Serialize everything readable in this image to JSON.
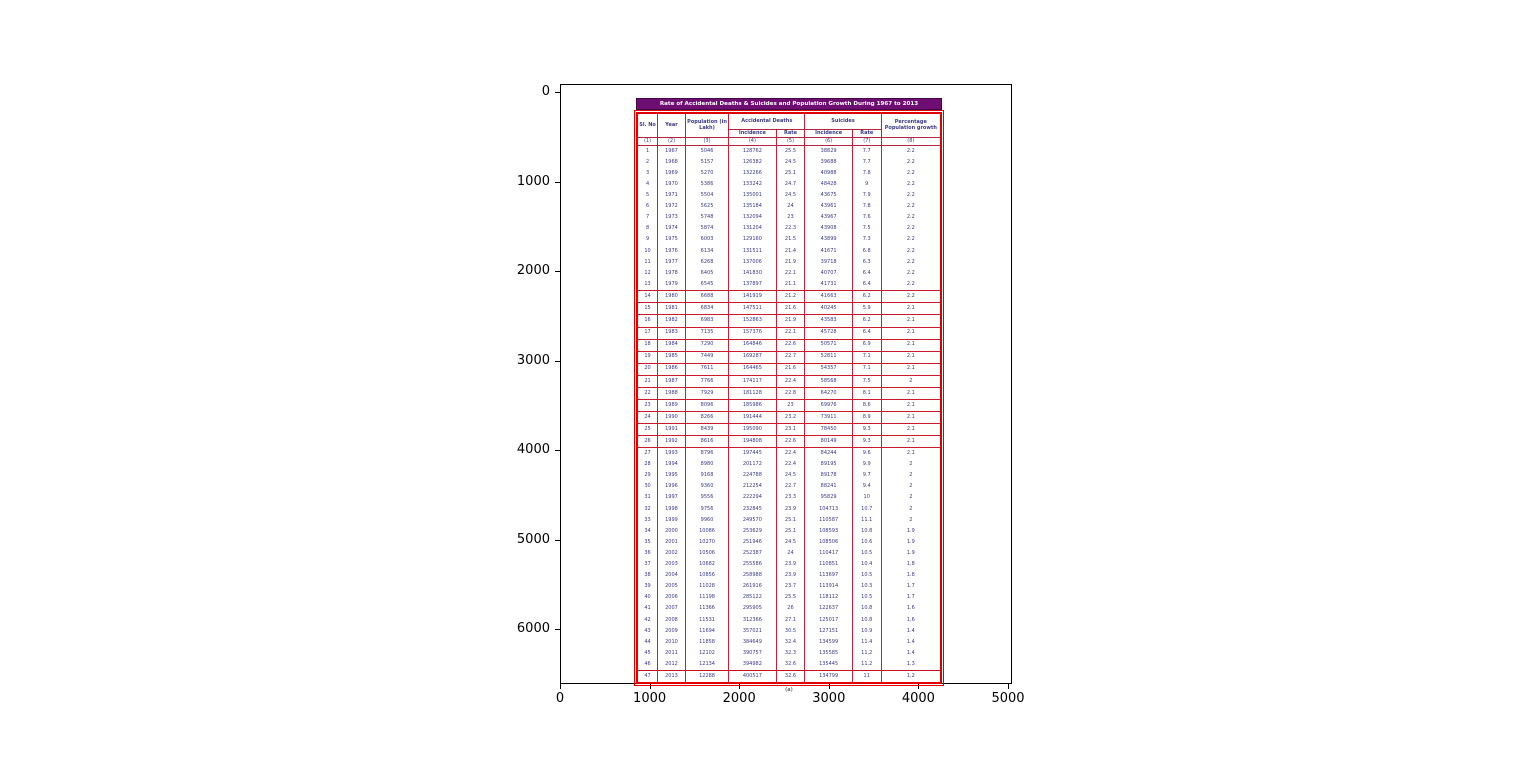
{
  "figure": {
    "x_ticks": [
      "0",
      "1000",
      "2000",
      "3000",
      "4000",
      "5000"
    ],
    "y_ticks": [
      "0",
      "1000",
      "2000",
      "3000",
      "4000",
      "5000",
      "6000"
    ]
  },
  "table": {
    "title": "Rate of Accidental Deaths & Suicides and Population Growth During 1967 to 2013",
    "caption": "(a)",
    "header": {
      "sl_no": "Sl. No",
      "year": "Year",
      "population": "Population (in Lakh)",
      "accidental": "Accidental Deaths",
      "suicides": "Suicides",
      "incidence": "Incidence",
      "rate": "Rate",
      "incidence2": "Incidence",
      "rate2": "Rate",
      "pct": "Percentage Population growth"
    },
    "column_numbers": [
      "(1)",
      "(2)",
      "(3)",
      "(4)",
      "(5)",
      "(6)",
      "(7)",
      "(8)"
    ]
  },
  "chart_data": {
    "type": "table",
    "title": "Rate of Accidental Deaths & Suicides and Population Growth During 1967 to 2013",
    "caption": "(a)",
    "columns": [
      "Sl. No",
      "Year",
      "Population (in Lakh)",
      "Accidental Deaths Incidence",
      "Accidental Deaths Rate",
      "Suicides Incidence",
      "Suicides Rate",
      "Percentage Population growth"
    ],
    "rows": [
      [
        1,
        1967,
        5046,
        128762,
        25.5,
        38829,
        7.7,
        2.2
      ],
      [
        2,
        1968,
        5157,
        126382,
        24.5,
        39688,
        7.7,
        2.2
      ],
      [
        3,
        1969,
        5270,
        132266,
        25.1,
        40988,
        7.8,
        2.2
      ],
      [
        4,
        1970,
        5386,
        133242,
        24.7,
        48428,
        9.0,
        2.2
      ],
      [
        5,
        1971,
        5504,
        135001,
        24.5,
        43675,
        7.9,
        2.2
      ],
      [
        6,
        1972,
        5625,
        135184,
        24.0,
        43961,
        7.8,
        2.2
      ],
      [
        7,
        1973,
        5748,
        132094,
        23.0,
        43967,
        7.6,
        2.2
      ],
      [
        8,
        1974,
        5874,
        131204,
        22.3,
        43908,
        7.5,
        2.2
      ],
      [
        9,
        1975,
        6003,
        129160,
        21.5,
        43899,
        7.3,
        2.2
      ],
      [
        10,
        1976,
        6134,
        131511,
        21.4,
        41671,
        6.8,
        2.2
      ],
      [
        11,
        1977,
        6268,
        137006,
        21.9,
        39718,
        6.3,
        2.2
      ],
      [
        12,
        1978,
        6405,
        141830,
        22.1,
        40707,
        6.4,
        2.2
      ],
      [
        13,
        1979,
        6545,
        137897,
        21.1,
        41731,
        6.4,
        2.2
      ],
      [
        14,
        1980,
        6688,
        141919,
        21.2,
        41663,
        6.2,
        2.2
      ],
      [
        15,
        1981,
        6834,
        147511,
        21.6,
        40245,
        5.9,
        2.1
      ],
      [
        16,
        1982,
        6983,
        152863,
        21.9,
        43583,
        6.2,
        2.1
      ],
      [
        17,
        1983,
        7135,
        157376,
        22.1,
        45728,
        6.4,
        2.1
      ],
      [
        18,
        1984,
        7290,
        164846,
        22.6,
        50571,
        6.9,
        2.1
      ],
      [
        19,
        1985,
        7449,
        169287,
        22.7,
        52811,
        7.1,
        2.1
      ],
      [
        20,
        1986,
        7611,
        164465,
        21.6,
        54357,
        7.1,
        2.1
      ],
      [
        21,
        1987,
        7766,
        174117,
        22.4,
        58568,
        7.5,
        2.0
      ],
      [
        22,
        1988,
        7929,
        181128,
        22.8,
        64270,
        8.1,
        2.1
      ],
      [
        23,
        1989,
        8096,
        185986,
        23.0,
        69976,
        8.6,
        2.1
      ],
      [
        24,
        1990,
        8266,
        191444,
        23.2,
        73911,
        8.9,
        2.1
      ],
      [
        25,
        1991,
        8439,
        195090,
        23.1,
        78450,
        9.3,
        2.1
      ],
      [
        26,
        1992,
        8616,
        194808,
        22.6,
        80149,
        9.3,
        2.1
      ],
      [
        27,
        1993,
        8796,
        197445,
        22.4,
        84244,
        9.6,
        2.1
      ],
      [
        28,
        1994,
        8980,
        201172,
        22.4,
        89195,
        9.9,
        2.0
      ],
      [
        29,
        1995,
        9168,
        224788,
        24.5,
        89178,
        9.7,
        2.0
      ],
      [
        30,
        1996,
        9360,
        212254,
        22.7,
        88241,
        9.4,
        2.0
      ],
      [
        31,
        1997,
        9556,
        222294,
        23.3,
        95829,
        10.0,
        2.0
      ],
      [
        32,
        1998,
        9756,
        232845,
        23.9,
        104713,
        10.7,
        2.0
      ],
      [
        33,
        1999,
        9960,
        249570,
        25.1,
        110587,
        11.1,
        2.0
      ],
      [
        34,
        2000,
        10086,
        253629,
        25.1,
        108593,
        10.8,
        1.9
      ],
      [
        35,
        2001,
        10270,
        251946,
        24.5,
        108506,
        10.6,
        1.9
      ],
      [
        36,
        2002,
        10506,
        252387,
        24.0,
        110417,
        10.5,
        1.9
      ],
      [
        37,
        2003,
        10682,
        255586,
        23.9,
        110851,
        10.4,
        1.8
      ],
      [
        38,
        2004,
        10856,
        258988,
        23.9,
        113697,
        10.5,
        1.8
      ],
      [
        39,
        2005,
        11028,
        261916,
        23.7,
        113914,
        10.3,
        1.7
      ],
      [
        40,
        2006,
        11198,
        285122,
        25.5,
        118112,
        10.5,
        1.7
      ],
      [
        41,
        2007,
        11366,
        295905,
        26.0,
        122637,
        10.8,
        1.6
      ],
      [
        42,
        2008,
        11531,
        312366,
        27.1,
        125017,
        10.8,
        1.6
      ],
      [
        43,
        2009,
        11694,
        357021,
        30.5,
        127151,
        10.9,
        1.4
      ],
      [
        44,
        2010,
        11858,
        384649,
        32.4,
        134599,
        11.4,
        1.4
      ],
      [
        45,
        2011,
        12102,
        390757,
        32.3,
        135585,
        11.2,
        1.4
      ],
      [
        46,
        2012,
        12134,
        394982,
        32.6,
        135445,
        11.2,
        1.3
      ],
      [
        47,
        2013,
        12288,
        400517,
        32.6,
        134799,
        11.0,
        1.2
      ]
    ]
  },
  "colors": {
    "title_bar": "#6e0e72",
    "table_border": "#e00000",
    "cell_text": "#3a3a85"
  }
}
